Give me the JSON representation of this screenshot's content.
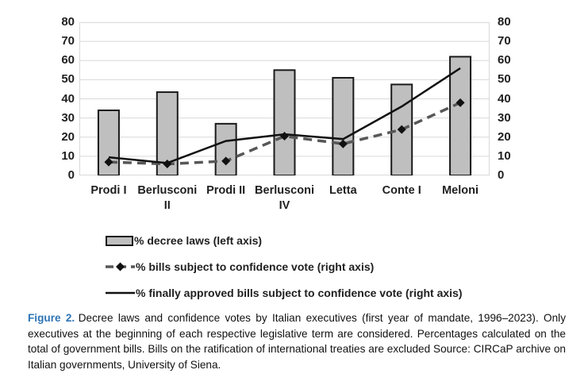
{
  "figure": {
    "caption": {
      "label": "Figure 2.",
      "label_color": "#2E74B5",
      "text": "Decree laws and confidence votes by Italian executives (first year of mandate, 1996–2023). Only executives at the beginning of each respective legislative term are considered. Percentages calculated on the total of government bills. Bills on the ratification of international treaties are excluded Source: CIRCaP archive on Italian governments, University of Siena."
    }
  },
  "chart_data": {
    "type": "bar",
    "subtype": "combo-bar-and-lines",
    "categories": [
      "Prodi I",
      "Berlusconi\nII",
      "Prodi II",
      "Berlusconi\nIV",
      "Letta",
      "Conte I",
      "Meloni"
    ],
    "series": [
      {
        "name": "% decree laws (left axis)",
        "type": "bar",
        "axis": "left",
        "values": [
          34,
          43.5,
          27,
          55,
          51,
          47.5,
          62
        ],
        "fill": "#BFBFBF",
        "stroke": "#1a1a1a"
      },
      {
        "name": "% bills subject to confidence vote (right axis)",
        "type": "line-dashed-diamond",
        "axis": "right",
        "values": [
          7,
          6,
          7.5,
          20.5,
          16.5,
          24,
          38
        ],
        "color": "#575757",
        "marker": "diamond",
        "marker_color": "#111111"
      },
      {
        "name": "% finally approved bills subject to confidence vote (right axis)",
        "type": "line-solid",
        "axis": "right",
        "values": [
          9.5,
          6.5,
          18,
          21.5,
          19,
          36,
          56
        ],
        "color": "#111111"
      }
    ],
    "left_axis": {
      "min": 0,
      "max": 80,
      "step": 10,
      "ticks": [
        0,
        10,
        20,
        30,
        40,
        50,
        60,
        70,
        80
      ]
    },
    "right_axis": {
      "min": 0,
      "max": 80,
      "step": 10,
      "ticks": [
        0,
        10,
        20,
        30,
        40,
        50,
        60,
        70,
        80
      ]
    },
    "grid": true,
    "gridline_color": "#D9D9D9",
    "plot_border_color": "#D9D9D9",
    "legend_position": "bottom-left",
    "title": "",
    "xlabel": "",
    "ylabel": ""
  }
}
